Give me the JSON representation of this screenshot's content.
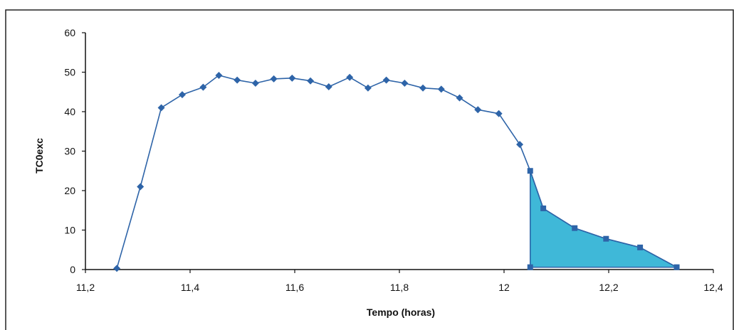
{
  "chart_data": {
    "type": "line",
    "xlabel": "Tempo (horas)",
    "ylabel": "TC0exc",
    "xlim": [
      11.2,
      12.4
    ],
    "ylim": [
      0,
      60
    ],
    "xticks": [
      11.2,
      11.4,
      11.6,
      11.8,
      12,
      12.2,
      12.4
    ],
    "yticks": [
      0,
      10,
      20,
      30,
      40,
      50,
      60
    ],
    "xtick_labels": [
      "11,2",
      "11,4",
      "11,6",
      "11,8",
      "12",
      "12,2",
      "12,4"
    ],
    "ytick_labels": [
      "0",
      "10",
      "20",
      "30",
      "40",
      "50",
      "60"
    ],
    "grid": false,
    "series": [
      {
        "marker": "diamond",
        "color": "#2e64a8",
        "x": [
          11.26,
          11.305,
          11.345,
          11.385,
          11.425,
          11.455,
          11.49,
          11.525,
          11.56,
          11.595,
          11.63,
          11.665,
          11.705,
          11.74,
          11.775,
          11.81,
          11.845,
          11.88,
          11.915,
          11.95,
          11.99,
          12.03
        ],
        "y": [
          0.3,
          21,
          41,
          44.3,
          46.2,
          49.2,
          48,
          47.2,
          48.3,
          48.5,
          47.8,
          46.3,
          48.7,
          46,
          48,
          47.2,
          46,
          45.7,
          43.5,
          40.5,
          39.5,
          31.7
        ]
      },
      {
        "marker": "square",
        "color": "#2e64a8",
        "x": [
          12.05,
          12.075,
          12.135,
          12.195,
          12.26,
          12.33
        ],
        "y": [
          25,
          15.5,
          10.5,
          7.8,
          5.6,
          0.6
        ]
      }
    ],
    "shaded_region": {
      "color": "#3fb8d8",
      "x": [
        12.05,
        12.075,
        12.135,
        12.195,
        12.26,
        12.33,
        12.05
      ],
      "y": [
        25,
        15.5,
        10.5,
        7.8,
        5.6,
        0.6,
        0.6
      ]
    },
    "shaded_base_marker": {
      "x": 12.05,
      "y": 0.6
    }
  }
}
